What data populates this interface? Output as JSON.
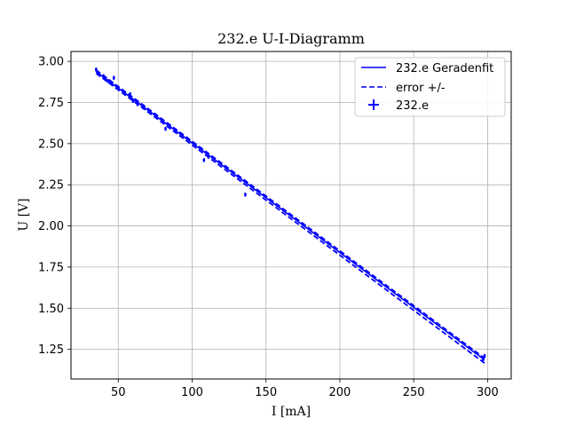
{
  "chart_data": {
    "type": "scatter",
    "title": "232.e U-I-Diagramm",
    "xlabel": "I [mA]",
    "ylabel": "U [V]",
    "xlim": [
      18,
      316
    ],
    "ylim": [
      1.07,
      3.06
    ],
    "x_ticks": [
      50,
      100,
      150,
      200,
      250,
      300
    ],
    "y_ticks": [
      1.25,
      1.5,
      1.75,
      2.0,
      2.25,
      2.5,
      2.75,
      3.0
    ],
    "x_tick_labels": [
      "50",
      "100",
      "150",
      "200",
      "250",
      "300"
    ],
    "y_tick_labels": [
      "1.25",
      "1.50",
      "1.75",
      "2.00",
      "2.25",
      "2.50",
      "2.75",
      "3.00"
    ],
    "grid": true,
    "legend_position": "top-right",
    "color": "#0000ff",
    "fit": {
      "name": "232.e Geradenfit",
      "x": [
        35,
        298
      ],
      "y": [
        2.937,
        1.186
      ]
    },
    "error_band": {
      "name": "error +/-",
      "x": [
        35,
        298
      ],
      "upper": [
        2.947,
        1.196
      ],
      "lower": [
        2.927,
        1.166
      ]
    },
    "measurements": {
      "name": "232.e",
      "points": [
        {
          "x": 35,
          "y": 2.95,
          "xerr": 0.8,
          "yerr": 0.012
        },
        {
          "x": 40,
          "y": 2.91,
          "xerr": 0.8,
          "yerr": 0.012
        },
        {
          "x": 43,
          "y": 2.88,
          "xerr": 0.8,
          "yerr": 0.012
        },
        {
          "x": 47,
          "y": 2.9,
          "xerr": 0.8,
          "yerr": 0.012
        },
        {
          "x": 58,
          "y": 2.8,
          "xerr": 0.8,
          "yerr": 0.012
        },
        {
          "x": 60,
          "y": 2.76,
          "xerr": 0.8,
          "yerr": 0.012
        },
        {
          "x": 63,
          "y": 2.74,
          "xerr": 0.8,
          "yerr": 0.012
        },
        {
          "x": 82,
          "y": 2.59,
          "xerr": 0.8,
          "yerr": 0.012
        },
        {
          "x": 85,
          "y": 2.6,
          "xerr": 0.8,
          "yerr": 0.012
        },
        {
          "x": 108,
          "y": 2.4,
          "xerr": 0.8,
          "yerr": 0.012
        },
        {
          "x": 111,
          "y": 2.42,
          "xerr": 0.8,
          "yerr": 0.012
        },
        {
          "x": 136,
          "y": 2.19,
          "xerr": 0.8,
          "yerr": 0.012
        },
        {
          "x": 297,
          "y": 1.19,
          "xerr": 0.8,
          "yerr": 0.012
        },
        {
          "x": 298,
          "y": 1.21,
          "xerr": 0.8,
          "yerr": 0.012
        }
      ]
    }
  }
}
